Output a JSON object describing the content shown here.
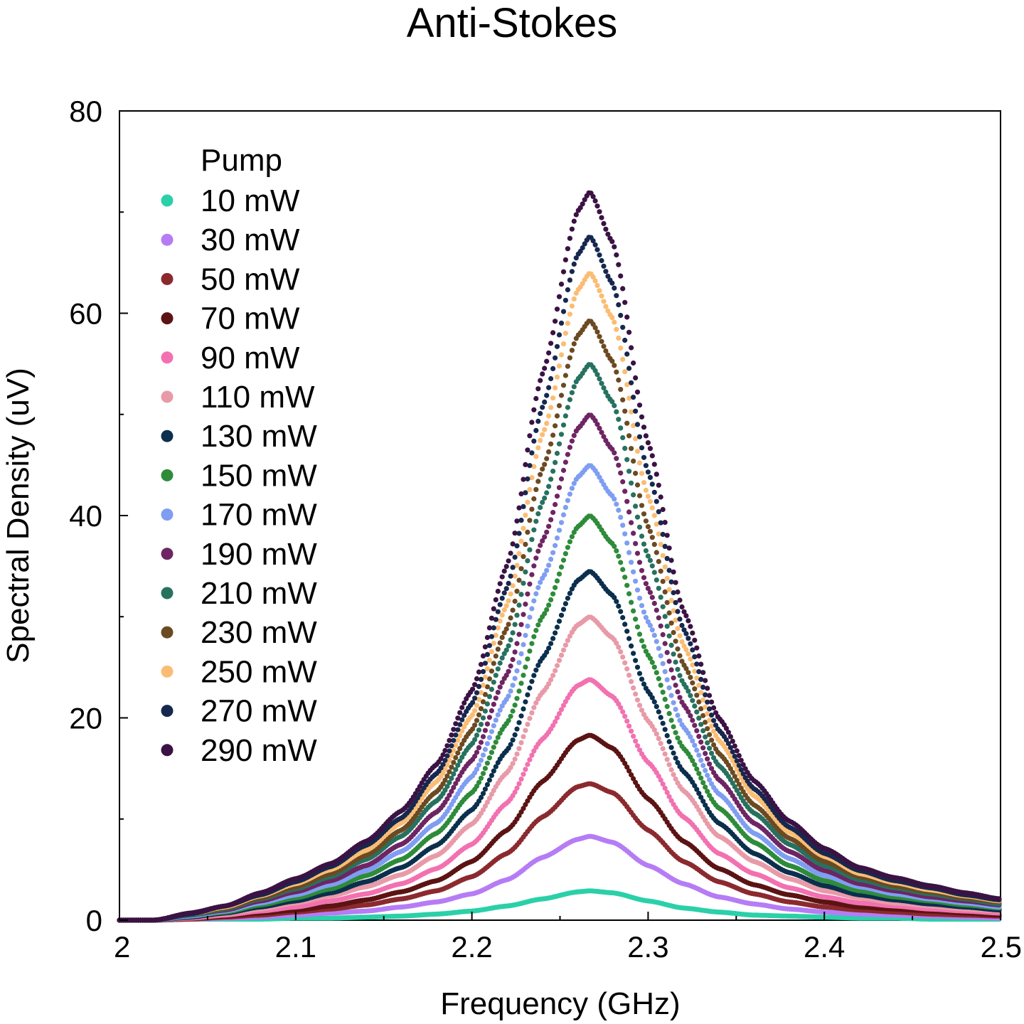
{
  "chart_data": {
    "type": "scatter",
    "title": "Anti-Stokes",
    "xlabel": "Frequency (GHz)",
    "ylabel": "Spectral Density (uV)",
    "xlim": [
      2.0,
      2.5
    ],
    "ylim": [
      0,
      80
    ],
    "x_ticks": [
      2.0,
      2.1,
      2.2,
      2.3,
      2.4,
      2.5
    ],
    "x_tick_labels": [
      "2",
      "2.1",
      "2.2",
      "2.3",
      "2.4",
      "2.5"
    ],
    "y_ticks": [
      0,
      20,
      40,
      60,
      80
    ],
    "y_tick_labels": [
      "0",
      "20",
      "40",
      "60",
      "80"
    ],
    "grid": false,
    "legend_title": "Pump",
    "legend_position": "top-left",
    "peak_frequency_ghz": 2.267,
    "x": [
      2.0,
      2.02,
      2.04,
      2.06,
      2.08,
      2.1,
      2.12,
      2.14,
      2.16,
      2.18,
      2.2,
      2.22,
      2.24,
      2.26,
      2.267,
      2.28,
      2.3,
      2.32,
      2.34,
      2.36,
      2.38,
      2.4,
      2.42,
      2.44,
      2.46,
      2.48,
      2.5
    ],
    "series": [
      {
        "name": "10 mW",
        "color": "#2ad0a8",
        "values": [
          0.0,
          0.0,
          0.1,
          0.1,
          0.1,
          0.2,
          0.2,
          0.3,
          0.4,
          0.6,
          0.9,
          1.4,
          2.1,
          2.8,
          2.9,
          2.7,
          1.9,
          1.2,
          0.8,
          0.5,
          0.4,
          0.3,
          0.2,
          0.2,
          0.1,
          0.1,
          0.1
        ]
      },
      {
        "name": "30 mW",
        "color": "#b57cf5",
        "values": [
          0.0,
          0.0,
          0.1,
          0.2,
          0.3,
          0.5,
          0.7,
          0.9,
          1.3,
          1.8,
          2.6,
          4.0,
          6.2,
          8.0,
          8.3,
          7.7,
          5.4,
          3.6,
          2.3,
          1.6,
          1.1,
          0.8,
          0.6,
          0.5,
          0.4,
          0.3,
          0.2
        ]
      },
      {
        "name": "50 mW",
        "color": "#8b2a2e",
        "values": [
          0.0,
          0.0,
          0.1,
          0.3,
          0.5,
          0.8,
          1.1,
          1.5,
          2.1,
          2.9,
          4.3,
          6.6,
          10.2,
          13.2,
          13.5,
          12.6,
          8.9,
          5.8,
          3.8,
          2.6,
          1.8,
          1.3,
          1.0,
          0.8,
          0.6,
          0.5,
          0.4
        ]
      },
      {
        "name": "70 mW",
        "color": "#5c1313",
        "values": [
          0.0,
          0.0,
          0.2,
          0.4,
          0.7,
          1.0,
          1.4,
          2.0,
          2.8,
          3.9,
          5.8,
          8.9,
          13.7,
          17.8,
          18.3,
          17.0,
          12.0,
          7.8,
          5.1,
          3.5,
          2.5,
          1.8,
          1.3,
          1.1,
          0.9,
          0.7,
          0.5
        ]
      },
      {
        "name": "90 mW",
        "color": "#f271b0",
        "values": [
          0.0,
          0.0,
          0.2,
          0.5,
          0.9,
          1.3,
          1.9,
          2.6,
          3.6,
          5.1,
          7.5,
          11.6,
          17.9,
          23.2,
          23.8,
          22.1,
          15.6,
          10.2,
          6.6,
          4.6,
          3.2,
          2.3,
          1.7,
          1.4,
          1.1,
          0.9,
          0.7
        ]
      },
      {
        "name": "110 mW",
        "color": "#e89aa8",
        "values": [
          0.0,
          0.0,
          0.3,
          0.6,
          1.1,
          1.7,
          2.4,
          3.3,
          4.5,
          6.4,
          9.5,
          14.6,
          22.5,
          29.2,
          30.0,
          27.9,
          19.7,
          12.8,
          8.3,
          5.8,
          4.1,
          2.9,
          2.2,
          1.7,
          1.4,
          1.1,
          0.9
        ]
      },
      {
        "name": "130 mW",
        "color": "#0b2f4d",
        "values": [
          0.0,
          0.0,
          0.3,
          0.7,
          1.3,
          1.9,
          2.7,
          3.8,
          5.2,
          7.4,
          10.9,
          16.8,
          25.9,
          33.6,
          34.5,
          32.1,
          22.6,
          14.7,
          9.6,
          6.6,
          4.7,
          3.4,
          2.5,
          2.0,
          1.6,
          1.3,
          1.0
        ]
      },
      {
        "name": "150 mW",
        "color": "#2e8b3a",
        "values": [
          0.0,
          0.0,
          0.4,
          0.8,
          1.5,
          2.2,
          3.1,
          4.4,
          6.0,
          8.6,
          12.6,
          19.5,
          30.0,
          38.9,
          40.0,
          37.2,
          26.2,
          17.0,
          11.1,
          7.7,
          5.4,
          3.9,
          2.9,
          2.3,
          1.9,
          1.5,
          1.2
        ]
      },
      {
        "name": "170 mW",
        "color": "#7f9ef2",
        "values": [
          0.0,
          0.0,
          0.4,
          0.9,
          1.7,
          2.5,
          3.5,
          4.9,
          6.8,
          9.6,
          14.2,
          21.9,
          33.8,
          43.8,
          45.0,
          41.9,
          29.5,
          19.1,
          12.5,
          8.6,
          6.1,
          4.4,
          3.3,
          2.6,
          2.1,
          1.7,
          1.3
        ]
      },
      {
        "name": "190 mW",
        "color": "#6e2563",
        "values": [
          0.0,
          0.0,
          0.5,
          1.0,
          1.9,
          2.8,
          3.9,
          5.4,
          7.5,
          10.7,
          15.8,
          24.3,
          37.5,
          48.6,
          50.0,
          46.5,
          32.8,
          21.3,
          13.9,
          9.6,
          6.8,
          4.9,
          3.6,
          2.9,
          2.3,
          1.9,
          1.5
        ]
      },
      {
        "name": "210 mW",
        "color": "#27715f",
        "values": [
          0.0,
          0.0,
          0.5,
          1.1,
          2.1,
          3.1,
          4.3,
          6.0,
          8.3,
          11.8,
          17.4,
          26.8,
          41.3,
          53.5,
          55.0,
          51.2,
          36.0,
          23.4,
          15.3,
          10.6,
          7.5,
          5.4,
          4.0,
          3.2,
          2.6,
          2.1,
          1.6
        ]
      },
      {
        "name": "230 mW",
        "color": "#6b4a22",
        "values": [
          0.0,
          0.0,
          0.6,
          1.2,
          2.2,
          3.3,
          4.6,
          6.4,
          8.9,
          12.7,
          18.8,
          28.9,
          44.6,
          57.8,
          59.3,
          55.2,
          38.9,
          25.3,
          16.5,
          11.4,
          8.1,
          5.8,
          4.3,
          3.4,
          2.8,
          2.2,
          1.8
        ]
      },
      {
        "name": "250 mW",
        "color": "#fbbd74",
        "values": [
          0.0,
          0.0,
          0.6,
          1.3,
          2.4,
          3.6,
          5.0,
          6.9,
          9.6,
          13.7,
          20.2,
          31.2,
          48.0,
          62.3,
          64.0,
          59.5,
          41.9,
          27.2,
          17.8,
          12.3,
          8.7,
          6.3,
          4.6,
          3.7,
          3.0,
          2.4,
          1.9
        ]
      },
      {
        "name": "270 mW",
        "color": "#17284f",
        "values": [
          0.0,
          0.0,
          0.6,
          1.4,
          2.5,
          3.8,
          5.3,
          7.4,
          10.1,
          14.5,
          21.4,
          32.9,
          50.7,
          65.8,
          67.6,
          62.9,
          44.3,
          28.8,
          18.8,
          13.0,
          9.2,
          6.6,
          4.9,
          3.9,
          3.2,
          2.5,
          2.0
        ]
      },
      {
        "name": "290 mW",
        "color": "#3b1244",
        "values": [
          0.0,
          0.0,
          0.7,
          1.4,
          2.7,
          4.1,
          5.6,
          7.8,
          10.8,
          15.4,
          22.7,
          35.1,
          54.0,
          70.1,
          72.0,
          67.0,
          47.2,
          30.6,
          20.0,
          13.8,
          9.8,
          7.1,
          5.2,
          4.2,
          3.4,
          2.7,
          2.1
        ]
      }
    ]
  }
}
